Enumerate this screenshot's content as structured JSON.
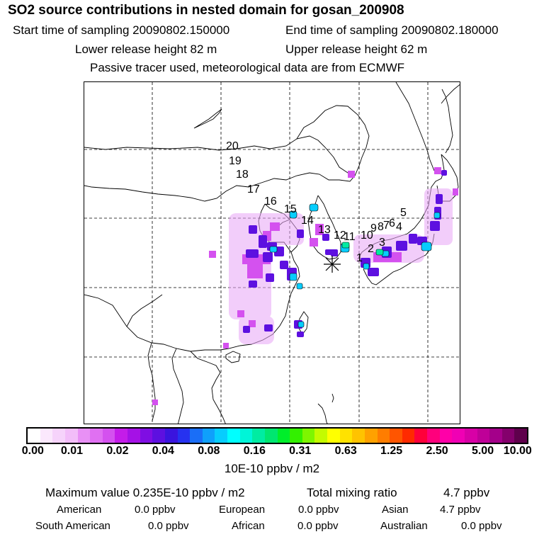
{
  "header": {
    "title": "SO2 source contributions in nested domain for gosan_200908",
    "start_time": "Start time of sampling 20090802.150000",
    "end_time": "End time of sampling 20090802.180000",
    "lower_height": "Lower release height   82 m",
    "upper_height": "Upper release height   62 m",
    "note": "Passive tracer used, meteorological data are from ECMWF"
  },
  "map": {
    "track_labels": [
      "20",
      "19",
      "18",
      "17",
      "16",
      "15",
      "14",
      "13",
      "12",
      "11",
      "10",
      "9",
      "8",
      "7",
      "6",
      "5",
      "4",
      "3",
      "2",
      "1"
    ],
    "receptor_marker": "asterisk"
  },
  "colorbar": {
    "ticks": [
      "0.00",
      "0.01",
      "0.02",
      "0.04",
      "0.08",
      "0.16",
      "0.31",
      "0.63",
      "1.25",
      "2.50",
      "5.00",
      "10.00"
    ],
    "unit": "10E-10 ppbv / m2",
    "colors": [
      "#ffffff",
      "#fbe8fd",
      "#f6d3fb",
      "#f2bdf9",
      "#e890f5",
      "#e070f2",
      "#d451ef",
      "#c41ce9",
      "#a511e6",
      "#7f0ee3",
      "#5d10e0",
      "#3a14de",
      "#2632f0",
      "#1a6ef7",
      "#0fa0fb",
      "#07cdfd",
      "#00ffff",
      "#00f5d8",
      "#00eca2",
      "#00e670",
      "#00ee2a",
      "#33f000",
      "#7ef600",
      "#c4fb00",
      "#ffff00",
      "#ffe200",
      "#ffc300",
      "#ffa100",
      "#ff7d00",
      "#ff5500",
      "#ff2a00",
      "#ff003a",
      "#ff007c",
      "#ff00a8",
      "#f000b4",
      "#d800a6",
      "#bf0098",
      "#a4008a",
      "#84006c",
      "#5f004c"
    ]
  },
  "summary": {
    "max_value": "Maximum value  0.235E-10 ppbv / m2",
    "total_label": "Total mixing ratio",
    "total_value": "4.7 ppbv",
    "regions": [
      {
        "name": "American",
        "value": "0.0 ppbv"
      },
      {
        "name": "European",
        "value": "0.0 ppbv"
      },
      {
        "name": "Asian",
        "value": "4.7 ppbv"
      },
      {
        "name": "South American",
        "value": "0.0 ppbv"
      },
      {
        "name": "African",
        "value": "0.0 ppbv"
      },
      {
        "name": "Australian",
        "value": "0.0 ppbv"
      }
    ]
  }
}
